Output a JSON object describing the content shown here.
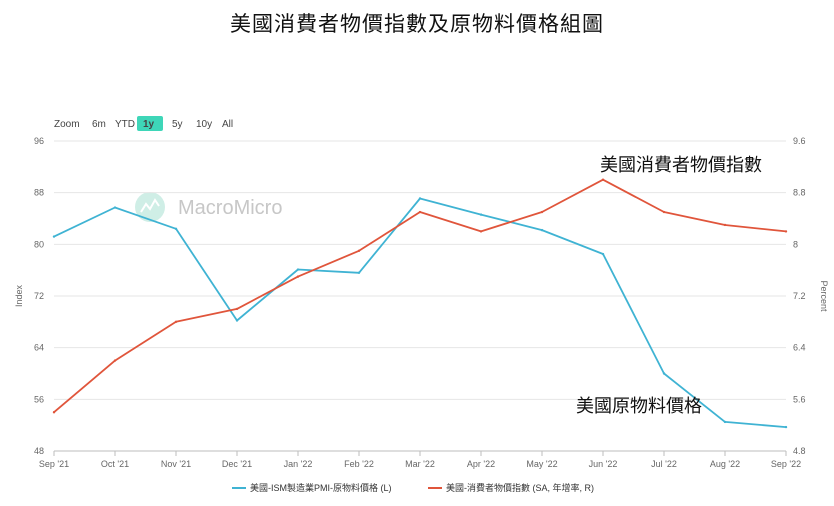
{
  "title": "美國消費者物價指數及原物料價格組圖",
  "zoom": {
    "label": "Zoom",
    "options": [
      "6m",
      "YTD",
      "1y",
      "5y",
      "10y",
      "All"
    ],
    "selected": "1y"
  },
  "watermark": "MacroMicro",
  "annotations": {
    "cpi": "美國消費者物價指數",
    "commodity": "美國原物料價格"
  },
  "colors": {
    "commodity": "#3fb3d3",
    "cpi": "#e0553b",
    "zoom_active": "#3ed6b8",
    "grid": "#e6e6e6"
  },
  "chart_data": {
    "type": "line",
    "x": [
      "Sep '21",
      "Oct '21",
      "Nov '21",
      "Dec '21",
      "Jan '22",
      "Feb '22",
      "Mar '22",
      "Apr '22",
      "May '22",
      "Jun '22",
      "Jul '22",
      "Aug '22",
      "Sep '22"
    ],
    "y_left": {
      "label": "Index",
      "ticks": [
        "96",
        "88",
        "80",
        "72",
        "64",
        "56",
        "48"
      ],
      "range": [
        48,
        96
      ]
    },
    "y_right": {
      "label": "Percent",
      "ticks": [
        "9.6",
        "8.8",
        "8",
        "7.2",
        "6.4",
        "5.6",
        "4.8"
      ],
      "range": [
        4.8,
        9.6
      ]
    },
    "series": [
      {
        "name": "美國-ISM製造業PMI-原物料價格 (L)",
        "axis": "left",
        "values": [
          81.2,
          85.7,
          82.4,
          68.2,
          76.1,
          75.6,
          87.1,
          84.6,
          82.2,
          78.5,
          60.0,
          52.5,
          51.7
        ]
      },
      {
        "name": "美國-消費者物價指數 (SA, 年增率, R)",
        "axis": "right",
        "values": [
          5.4,
          6.2,
          6.8,
          7.0,
          7.5,
          7.9,
          8.5,
          8.2,
          8.5,
          9.0,
          8.5,
          8.3,
          8.2
        ]
      }
    ],
    "grid": true,
    "legend": "bottom"
  }
}
